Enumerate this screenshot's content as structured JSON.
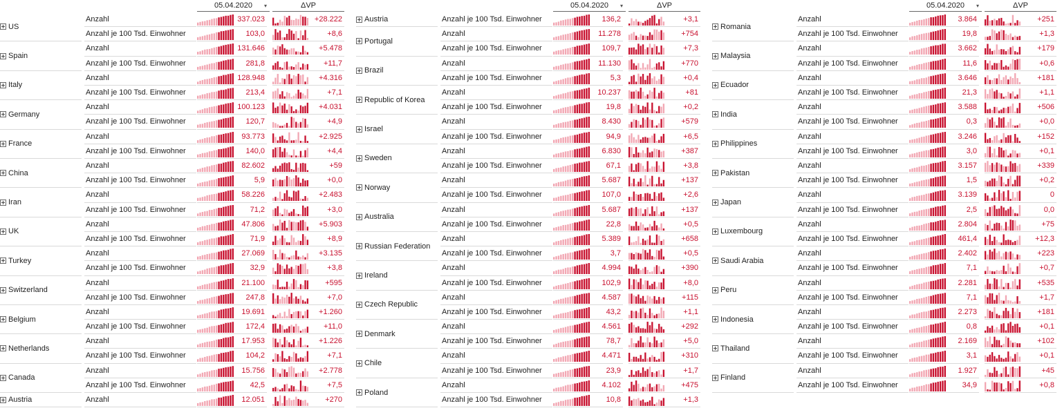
{
  "header": {
    "date_label": "05.04.2020",
    "delta_label": "ΔVP"
  },
  "metric_labels": {
    "count": "Anzahl",
    "per100k": "Anzahl je 100 Tsd. Einwohner"
  },
  "colors": {
    "accent": "#c8102e",
    "light": "#f2a7b3"
  },
  "panels": [
    {
      "groups": [
        {
          "country": "US",
          "count": "337.023",
          "count_delta": "+28.222",
          "per100k": "103,0",
          "per100k_delta": "+8,6"
        },
        {
          "country": "Spain",
          "count": "131.646",
          "count_delta": "+5.478",
          "per100k": "281,8",
          "per100k_delta": "+11,7"
        },
        {
          "country": "Italy",
          "count": "128.948",
          "count_delta": "+4.316",
          "per100k": "213,4",
          "per100k_delta": "+7,1"
        },
        {
          "country": "Germany",
          "count": "100.123",
          "count_delta": "+4.031",
          "per100k": "120,7",
          "per100k_delta": "+4,9"
        },
        {
          "country": "France",
          "count": "93.773",
          "count_delta": "+2.925",
          "per100k": "140,0",
          "per100k_delta": "+4,4"
        },
        {
          "country": "China",
          "count": "82.602",
          "count_delta": "+59",
          "per100k": "5,9",
          "per100k_delta": "+0,0"
        },
        {
          "country": "Iran",
          "count": "58.226",
          "count_delta": "+2.483",
          "per100k": "71,2",
          "per100k_delta": "+3,0"
        },
        {
          "country": "UK",
          "count": "47.806",
          "count_delta": "+5.903",
          "per100k": "71,9",
          "per100k_delta": "+8,9"
        },
        {
          "country": "Turkey",
          "count": "27.069",
          "count_delta": "+3.135",
          "per100k": "32,9",
          "per100k_delta": "+3,8"
        },
        {
          "country": "Switzerland",
          "count": "21.100",
          "count_delta": "+595",
          "per100k": "247,8",
          "per100k_delta": "+7,0"
        },
        {
          "country": "Belgium",
          "count": "19.691",
          "count_delta": "+1.260",
          "per100k": "172,4",
          "per100k_delta": "+11,0"
        },
        {
          "country": "Netherlands",
          "count": "17.953",
          "count_delta": "+1.226",
          "per100k": "104,2",
          "per100k_delta": "+7,1"
        },
        {
          "country": "Canada",
          "count": "15.756",
          "count_delta": "+2.778",
          "per100k": "42,5",
          "per100k_delta": "+7,5"
        },
        {
          "country": "Austria",
          "count": "12.051",
          "count_delta": "+270",
          "per100k": null,
          "per100k_delta": null
        }
      ]
    },
    {
      "groups": [
        {
          "country": "Austria",
          "count": null,
          "count_delta": null,
          "per100k": "136,2",
          "per100k_delta": "+3,1"
        },
        {
          "country": "Portugal",
          "count": "11.278",
          "count_delta": "+754",
          "per100k": "109,7",
          "per100k_delta": "+7,3"
        },
        {
          "country": "Brazil",
          "count": "11.130",
          "count_delta": "+770",
          "per100k": "5,3",
          "per100k_delta": "+0,4"
        },
        {
          "country": "Republic of Korea",
          "count": "10.237",
          "count_delta": "+81",
          "per100k": "19,8",
          "per100k_delta": "+0,2"
        },
        {
          "country": "Israel",
          "count": "8.430",
          "count_delta": "+579",
          "per100k": "94,9",
          "per100k_delta": "+6,5"
        },
        {
          "country": "Sweden",
          "count": "6.830",
          "count_delta": "+387",
          "per100k": "67,1",
          "per100k_delta": "+3,8"
        },
        {
          "country": "Norway",
          "count": "5.687",
          "count_delta": "+137",
          "per100k": "107,0",
          "per100k_delta": "+2,6"
        },
        {
          "country": "Australia",
          "count": "5.687",
          "count_delta": "+137",
          "per100k": "22,8",
          "per100k_delta": "+0,5"
        },
        {
          "country": "Russian Federation",
          "count": "5.389",
          "count_delta": "+658",
          "per100k": "3,7",
          "per100k_delta": "+0,5"
        },
        {
          "country": "Ireland",
          "count": "4.994",
          "count_delta": "+390",
          "per100k": "102,9",
          "per100k_delta": "+8,0"
        },
        {
          "country": "Czech Republic",
          "count": "4.587",
          "count_delta": "+115",
          "per100k": "43,2",
          "per100k_delta": "+1,1"
        },
        {
          "country": "Denmark",
          "count": "4.561",
          "count_delta": "+292",
          "per100k": "78,7",
          "per100k_delta": "+5,0"
        },
        {
          "country": "Chile",
          "count": "4.471",
          "count_delta": "+310",
          "per100k": "23,9",
          "per100k_delta": "+1,7"
        },
        {
          "country": "Poland",
          "count": "4.102",
          "count_delta": "+475",
          "per100k": "10,8",
          "per100k_delta": "+1,3"
        }
      ]
    },
    {
      "groups": [
        {
          "country": "Romania",
          "count": "3.864",
          "count_delta": "+251",
          "per100k": "19,8",
          "per100k_delta": "+1,3"
        },
        {
          "country": "Malaysia",
          "count": "3.662",
          "count_delta": "+179",
          "per100k": "11,6",
          "per100k_delta": "+0,6"
        },
        {
          "country": "Ecuador",
          "count": "3.646",
          "count_delta": "+181",
          "per100k": "21,3",
          "per100k_delta": "+1,1"
        },
        {
          "country": "India",
          "count": "3.588",
          "count_delta": "+506",
          "per100k": "0,3",
          "per100k_delta": "+0,0"
        },
        {
          "country": "Philippines",
          "count": "3.246",
          "count_delta": "+152",
          "per100k": "3,0",
          "per100k_delta": "+0,1"
        },
        {
          "country": "Pakistan",
          "count": "3.157",
          "count_delta": "+339",
          "per100k": "1,5",
          "per100k_delta": "+0,2"
        },
        {
          "country": "Japan",
          "count": "3.139",
          "count_delta": "0",
          "per100k": "2,5",
          "per100k_delta": "0,0"
        },
        {
          "country": "Luxembourg",
          "count": "2.804",
          "count_delta": "+75",
          "per100k": "461,4",
          "per100k_delta": "+12,3"
        },
        {
          "country": "Saudi Arabia",
          "count": "2.402",
          "count_delta": "+223",
          "per100k": "7,1",
          "per100k_delta": "+0,7"
        },
        {
          "country": "Peru",
          "count": "2.281",
          "count_delta": "+535",
          "per100k": "7,1",
          "per100k_delta": "+1,7"
        },
        {
          "country": "Indonesia",
          "count": "2.273",
          "count_delta": "+181",
          "per100k": "0,8",
          "per100k_delta": "+0,1"
        },
        {
          "country": "Thailand",
          "count": "2.169",
          "count_delta": "+102",
          "per100k": "3,1",
          "per100k_delta": "+0,1"
        },
        {
          "country": "Finland",
          "count": "1.927",
          "count_delta": "+45",
          "per100k": "34,9",
          "per100k_delta": "+0,8"
        }
      ]
    }
  ]
}
